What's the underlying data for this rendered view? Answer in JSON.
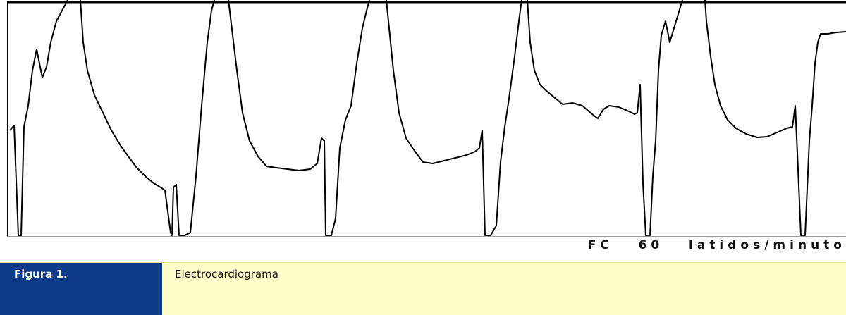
{
  "figure": {
    "readout": "FC   60   latidos/minuto"
  },
  "caption": {
    "label": "Figura 1.",
    "text": "Electrocardiograma"
  },
  "colors": {
    "label_bg": "#0d3b8a",
    "caption_bg": "#ffffcc",
    "trace": "#000000"
  }
}
